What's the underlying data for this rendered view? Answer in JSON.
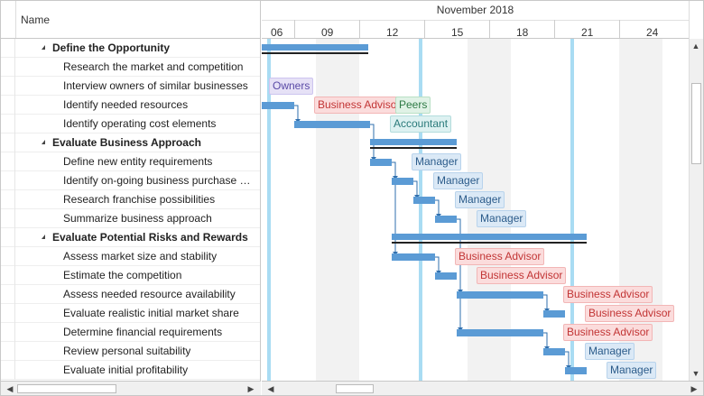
{
  "grid": {
    "header": "Name",
    "rows": [
      {
        "label": "Define the Opportunity",
        "summary": true
      },
      {
        "label": "Research the market and competition"
      },
      {
        "label": "Interview owners of similar businesses"
      },
      {
        "label": "Identify needed resources"
      },
      {
        "label": "Identify operating cost elements"
      },
      {
        "label": "Evaluate Business Approach",
        "summary": true
      },
      {
        "label": "Define new entity requirements"
      },
      {
        "label": "Identify on-going business purchase o..."
      },
      {
        "label": "Research franchise possibilities"
      },
      {
        "label": "Summarize business approach"
      },
      {
        "label": "Evaluate Potential Risks and Rewards",
        "summary": true
      },
      {
        "label": "Assess market size and stability"
      },
      {
        "label": "Estimate the competition"
      },
      {
        "label": "Assess needed resource availability"
      },
      {
        "label": "Evaluate realistic initial market share"
      },
      {
        "label": "Determine financial requirements"
      },
      {
        "label": "Review personal suitability"
      },
      {
        "label": "Evaluate initial profitability"
      }
    ]
  },
  "timeline": {
    "month": "November 2018",
    "day_ticks": [
      "06",
      "09",
      "12",
      "15",
      "18",
      "21",
      "24"
    ],
    "resources": [
      {
        "row": 2,
        "label": "Owners"
      },
      {
        "row": 3,
        "label": "Business Advisor"
      },
      {
        "row": 3,
        "label": "Peers"
      },
      {
        "row": 4,
        "label": "Accountant"
      },
      {
        "row": 6,
        "label": "Manager"
      },
      {
        "row": 7,
        "label": "Manager"
      },
      {
        "row": 8,
        "label": "Manager"
      },
      {
        "row": 9,
        "label": "Manager"
      },
      {
        "row": 11,
        "label": "Business Advisor"
      },
      {
        "row": 12,
        "label": "Business Advisor"
      },
      {
        "row": 13,
        "label": "Business Advisor"
      },
      {
        "row": 14,
        "label": "Business Advisor"
      },
      {
        "row": 15,
        "label": "Business Advisor"
      },
      {
        "row": 16,
        "label": "Manager"
      },
      {
        "row": 17,
        "label": "Manager"
      }
    ]
  },
  "colors": {
    "bar": "#5b9bd5",
    "today_line": "#a9dcf3",
    "weekend": "#f2f2f2"
  },
  "scroll": {
    "up": "▲",
    "down": "▼",
    "left": "◀",
    "right": "▶"
  }
}
